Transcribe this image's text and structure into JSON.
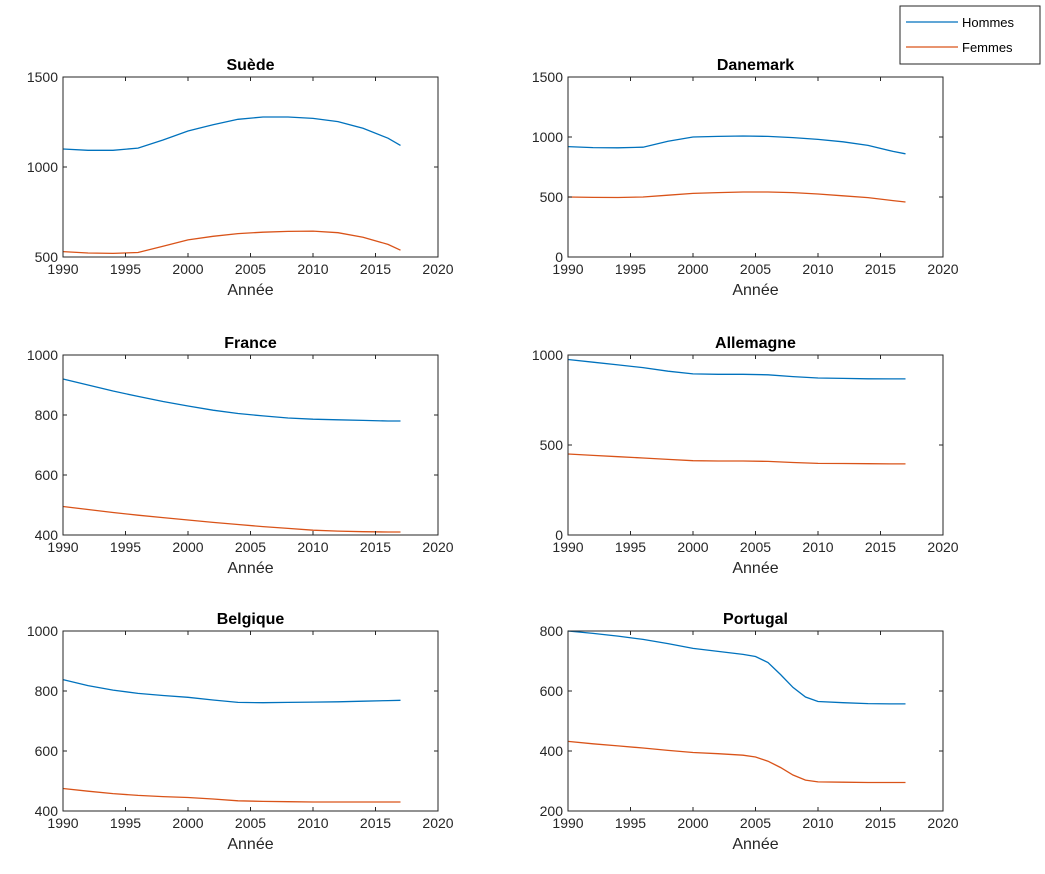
{
  "colors": {
    "hommes": "#0072BD",
    "femmes": "#D95319",
    "axes": "#262626"
  },
  "legend": {
    "placement": "top-right",
    "entries": [
      "Hommes",
      "Femmes"
    ]
  },
  "chart_data": [
    {
      "type": "line",
      "title": "Suède",
      "xlabel": "Année",
      "ylabel": "",
      "xlim": [
        1990,
        2020
      ],
      "ylim": [
        500,
        1500
      ],
      "xticks": [
        "1990",
        "1995",
        "2000",
        "2005",
        "2010",
        "2015",
        "2020"
      ],
      "yticks": [
        "500",
        "1000",
        "1500"
      ],
      "ytick_values": [
        500,
        1000,
        1500
      ],
      "x": [
        1990,
        1992,
        1994,
        1996,
        1998,
        2000,
        2002,
        2004,
        2006,
        2008,
        2010,
        2012,
        2014,
        2016,
        2017
      ],
      "series": [
        {
          "name": "Hommes",
          "values": [
            1100,
            1093,
            1093,
            1105,
            1150,
            1200,
            1235,
            1265,
            1278,
            1278,
            1270,
            1252,
            1215,
            1160,
            1120
          ]
        },
        {
          "name": "Femmes",
          "values": [
            530,
            522,
            520,
            525,
            560,
            595,
            615,
            630,
            638,
            642,
            644,
            635,
            610,
            570,
            538
          ]
        }
      ]
    },
    {
      "type": "line",
      "title": "Danemark",
      "xlabel": "Année",
      "ylabel": "",
      "xlim": [
        1990,
        2020
      ],
      "ylim": [
        0,
        1500
      ],
      "xticks": [
        "1990",
        "1995",
        "2000",
        "2005",
        "2010",
        "2015",
        "2020"
      ],
      "yticks": [
        "0",
        "500",
        "1000",
        "1500"
      ],
      "ytick_values": [
        0,
        500,
        1000,
        1500
      ],
      "x": [
        1990,
        1992,
        1994,
        1996,
        1998,
        2000,
        2002,
        2004,
        2006,
        2008,
        2010,
        2012,
        2014,
        2016,
        2017
      ],
      "series": [
        {
          "name": "Hommes",
          "values": [
            920,
            912,
            910,
            915,
            965,
            1000,
            1005,
            1008,
            1005,
            995,
            980,
            960,
            930,
            880,
            860
          ]
        },
        {
          "name": "Femmes",
          "values": [
            500,
            497,
            496,
            500,
            515,
            530,
            537,
            542,
            542,
            537,
            525,
            510,
            495,
            470,
            458
          ]
        }
      ]
    },
    {
      "type": "line",
      "title": "France",
      "xlabel": "Année",
      "ylabel": "",
      "xlim": [
        1990,
        2020
      ],
      "ylim": [
        400,
        1000
      ],
      "xticks": [
        "1990",
        "1995",
        "2000",
        "2005",
        "2010",
        "2015",
        "2020"
      ],
      "yticks": [
        "400",
        "600",
        "800",
        "1000"
      ],
      "ytick_values": [
        400,
        600,
        800,
        1000
      ],
      "x": [
        1990,
        1992,
        1994,
        1996,
        1998,
        2000,
        2002,
        2004,
        2006,
        2008,
        2010,
        2012,
        2014,
        2016,
        2017
      ],
      "series": [
        {
          "name": "Hommes",
          "values": [
            920,
            900,
            880,
            862,
            845,
            830,
            816,
            805,
            797,
            790,
            786,
            784,
            782,
            780,
            780
          ]
        },
        {
          "name": "Femmes",
          "values": [
            495,
            485,
            475,
            466,
            458,
            450,
            442,
            435,
            428,
            422,
            416,
            413,
            411,
            410,
            410
          ]
        }
      ]
    },
    {
      "type": "line",
      "title": "Allemagne",
      "xlabel": "Année",
      "ylabel": "",
      "xlim": [
        1990,
        2020
      ],
      "ylim": [
        0,
        1000
      ],
      "xticks": [
        "1990",
        "1995",
        "2000",
        "2005",
        "2010",
        "2015",
        "2020"
      ],
      "yticks": [
        "0",
        "500",
        "1000"
      ],
      "ytick_values": [
        0,
        500,
        1000
      ],
      "x": [
        1990,
        1992,
        1994,
        1996,
        1998,
        2000,
        2002,
        2004,
        2006,
        2008,
        2010,
        2012,
        2014,
        2016,
        2017
      ],
      "series": [
        {
          "name": "Hommes",
          "values": [
            975,
            960,
            945,
            930,
            910,
            895,
            893,
            893,
            890,
            880,
            872,
            870,
            868,
            867,
            867
          ]
        },
        {
          "name": "Femmes",
          "values": [
            450,
            442,
            435,
            428,
            420,
            413,
            411,
            411,
            409,
            403,
            398,
            397,
            396,
            395,
            395
          ]
        }
      ]
    },
    {
      "type": "line",
      "title": "Belgique",
      "xlabel": "Année",
      "ylabel": "",
      "xlim": [
        1990,
        2020
      ],
      "ylim": [
        400,
        1000
      ],
      "xticks": [
        "1990",
        "1995",
        "2000",
        "2005",
        "2010",
        "2015",
        "2020"
      ],
      "yticks": [
        "400",
        "600",
        "800",
        "1000"
      ],
      "ytick_values": [
        400,
        600,
        800,
        1000
      ],
      "x": [
        1990,
        1992,
        1994,
        1996,
        1998,
        2000,
        2002,
        2004,
        2006,
        2008,
        2010,
        2012,
        2014,
        2016,
        2017
      ],
      "series": [
        {
          "name": "Hommes",
          "values": [
            838,
            818,
            803,
            792,
            785,
            779,
            770,
            762,
            761,
            762,
            763,
            764,
            766,
            768,
            769
          ]
        },
        {
          "name": "Femmes",
          "values": [
            475,
            466,
            458,
            452,
            448,
            445,
            440,
            434,
            432,
            431,
            430,
            430,
            430,
            430,
            430
          ]
        }
      ]
    },
    {
      "type": "line",
      "title": "Portugal",
      "xlabel": "Année",
      "ylabel": "",
      "xlim": [
        1990,
        2020
      ],
      "ylim": [
        200,
        800
      ],
      "xticks": [
        "1990",
        "1995",
        "2000",
        "2005",
        "2010",
        "2015",
        "2020"
      ],
      "yticks": [
        "200",
        "400",
        "600",
        "800"
      ],
      "ytick_values": [
        200,
        400,
        600,
        800
      ],
      "x": [
        1990,
        1992,
        1994,
        1996,
        1998,
        2000,
        2002,
        2004,
        2005,
        2006,
        2007,
        2008,
        2009,
        2010,
        2012,
        2014,
        2016,
        2017
      ],
      "series": [
        {
          "name": "Hommes",
          "values": [
            800,
            792,
            783,
            772,
            758,
            742,
            732,
            722,
            715,
            695,
            655,
            612,
            580,
            565,
            561,
            558,
            557,
            557
          ]
        },
        {
          "name": "Femmes",
          "values": [
            432,
            424,
            417,
            410,
            402,
            395,
            391,
            386,
            380,
            366,
            345,
            320,
            303,
            297,
            296,
            295,
            295,
            295
          ]
        }
      ]
    }
  ]
}
